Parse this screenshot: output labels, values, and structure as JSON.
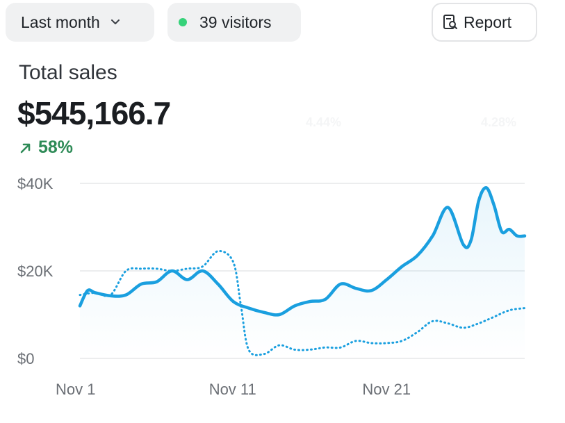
{
  "toolbar": {
    "range_label": "Last month",
    "visitors_label": "39 visitors",
    "report_label": "Report",
    "live_dot_color": "#36d27a"
  },
  "metric": {
    "title": "Total sales",
    "value": "$545,166.7",
    "change": "58%",
    "change_color": "#2e8b57",
    "faint_values": [
      "4.44%",
      "4.28%"
    ]
  },
  "chart_data": {
    "type": "line",
    "title": "",
    "xlabel": "",
    "ylabel": "",
    "ylim": [
      0,
      40000
    ],
    "yticks": [
      0,
      20000,
      40000
    ],
    "ytick_labels": [
      "$0",
      "$20K",
      "$40K"
    ],
    "xlim": [
      1,
      30
    ],
    "xticks": [
      1,
      11,
      21
    ],
    "xtick_labels": [
      "Nov 1",
      "Nov 11",
      "Nov 21"
    ],
    "grid": true,
    "series": [
      {
        "style": "solid",
        "color": "#1a9fdf",
        "area_fill": true,
        "x": [
          1,
          1.5,
          2,
          3,
          4,
          5,
          6,
          7,
          8,
          9,
          10,
          11,
          12,
          13,
          14,
          15,
          16,
          17,
          18,
          19,
          20,
          21,
          22,
          23,
          24,
          25,
          26,
          26.5,
          27,
          27.5,
          28,
          28.5,
          29,
          29.5,
          30
        ],
        "y": [
          12000,
          15500,
          15000,
          14300,
          14500,
          17000,
          17500,
          20000,
          18000,
          20000,
          17000,
          13000,
          11500,
          10500,
          10000,
          12000,
          13000,
          13500,
          17000,
          16000,
          15500,
          18000,
          21000,
          23500,
          28000,
          34500,
          26000,
          27000,
          36000,
          39000,
          35000,
          29000,
          29500,
          28000,
          28000
        ]
      },
      {
        "style": "dotted",
        "color": "#1a9fdf",
        "area_fill": false,
        "x": [
          1,
          2,
          3,
          4,
          5,
          6,
          7,
          8,
          9,
          10,
          11,
          11.5,
          12,
          13,
          14,
          15,
          16,
          17,
          18,
          19,
          20,
          21,
          22,
          23,
          24,
          25,
          26,
          27,
          28,
          29,
          30
        ],
        "y": [
          14500,
          15000,
          14500,
          20000,
          20500,
          20500,
          20000,
          20500,
          21000,
          24500,
          22000,
          12000,
          2000,
          1000,
          3000,
          2000,
          2000,
          2500,
          2500,
          4000,
          3500,
          3500,
          4000,
          6000,
          8500,
          8000,
          7000,
          8000,
          9500,
          11000,
          11500
        ]
      }
    ]
  }
}
